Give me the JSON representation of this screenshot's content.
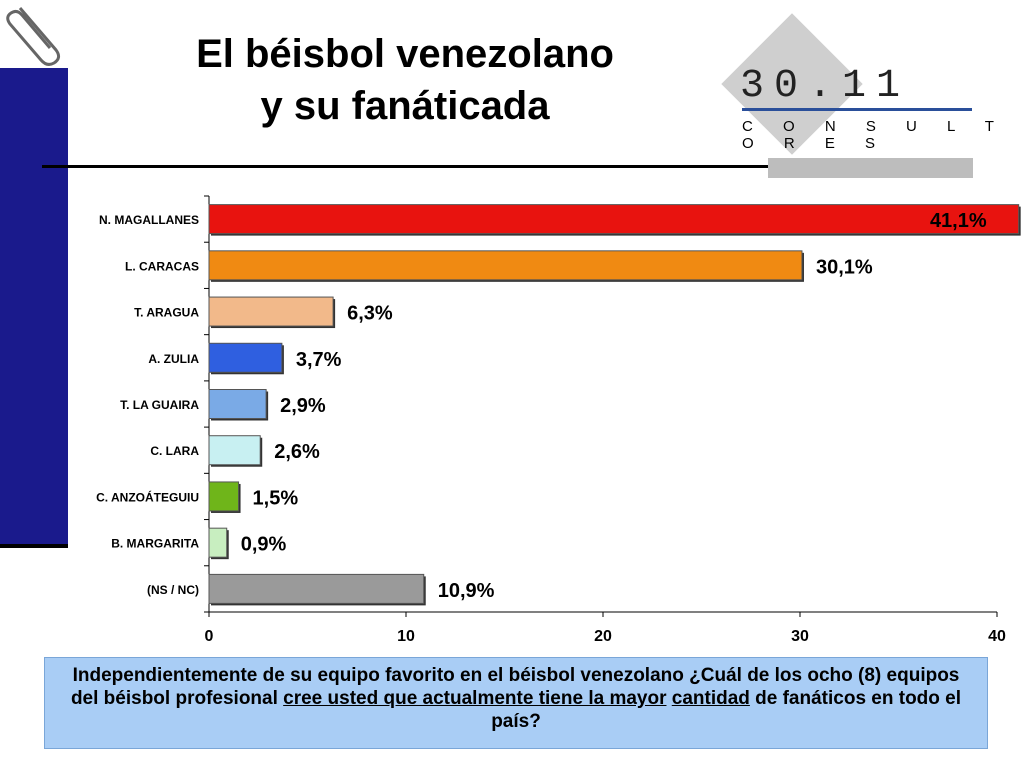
{
  "title": {
    "line1": "El béisbol venezolano",
    "line2": "y su fanáticada"
  },
  "logo": {
    "number": "30.11",
    "subtitle": "C O N S U L T O R E S"
  },
  "chart_data": {
    "type": "bar",
    "orientation": "horizontal",
    "categories": [
      "N. MAGALLANES",
      "L. CARACAS",
      "T. ARAGUA",
      "A. ZULIA",
      "T. LA GUAIRA",
      "C. LARA",
      "C. ANZOÁTEGUIU",
      "B. MARGARITA",
      "(NS / NC)"
    ],
    "values": [
      41.1,
      30.1,
      6.3,
      3.7,
      2.9,
      2.6,
      1.5,
      0.9,
      10.9
    ],
    "data_labels": [
      "41,1%",
      "30,1%",
      "6,3%",
      "3,7%",
      "2,9%",
      "2,6%",
      "1,5%",
      "0,9%",
      "10,9%"
    ],
    "colors": [
      "#e8130f",
      "#f08a12",
      "#f2b98a",
      "#2f5fe0",
      "#7aaae6",
      "#c8f0f2",
      "#6fb51a",
      "#c8eec0",
      "#9a9a9a"
    ],
    "xlim": [
      0,
      40
    ],
    "xticks": [
      0,
      10,
      20,
      30,
      40
    ],
    "grid": false
  },
  "question": {
    "part1": "Independientemente de su equipo favorito en el béisbol venezolano ¿Cuál de los ocho (8) equipos del béisbol profesional ",
    "underlined1": "cree usted que actualmente tiene la mayor",
    "underlined2": "cantidad",
    "part2": " de fanáticos en todo el país?"
  }
}
